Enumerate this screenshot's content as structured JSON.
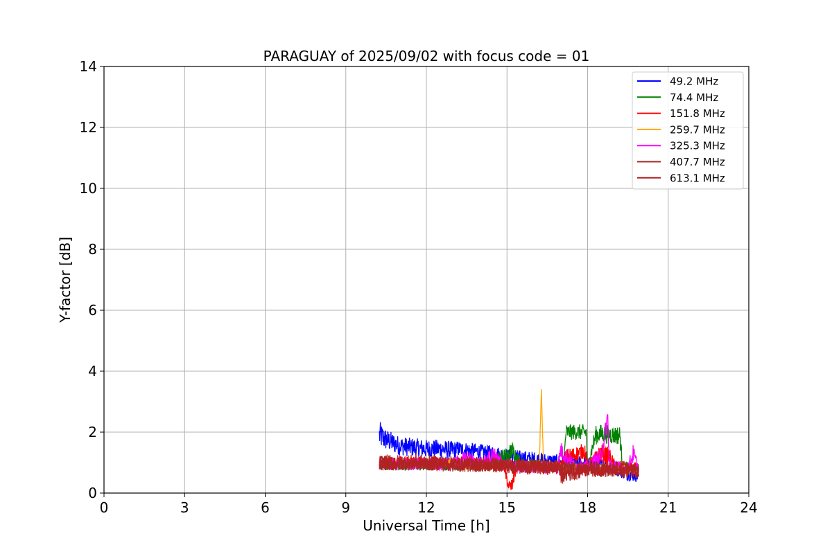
{
  "chart_data": {
    "type": "line",
    "title": "PARAGUAY of 2025/09/02 with focus code = 01",
    "xlabel": "Universal Time [h]",
    "ylabel": "Y-factor [dB]",
    "xlim": [
      0,
      24
    ],
    "ylim": [
      0,
      14
    ],
    "xticks": [
      0,
      3,
      6,
      9,
      12,
      15,
      18,
      21,
      24
    ],
    "yticks": [
      0,
      2,
      4,
      6,
      8,
      10,
      12,
      14
    ],
    "xtick_labels": [
      "0",
      "3",
      "6",
      "9",
      "12",
      "15",
      "18",
      "21",
      "24"
    ],
    "ytick_labels": [
      "0",
      "2",
      "4",
      "6",
      "8",
      "10",
      "12",
      "14"
    ],
    "grid": true,
    "legend_position": "top-right",
    "series": [
      {
        "name": " 49.2 MHz",
        "color": "#0000ff",
        "x": [
          10.25,
          10.5,
          11.0,
          11.5,
          12.0,
          12.5,
          12.95,
          13.2,
          13.6,
          14.0,
          14.5,
          15.0,
          15.5,
          16.0,
          16.5,
          17.0,
          17.5,
          18.0,
          18.5,
          19.0,
          19.5,
          19.9
        ],
        "y": [
          1.9,
          1.75,
          1.55,
          1.5,
          1.45,
          1.45,
          1.4,
          1.45,
          1.4,
          1.35,
          1.3,
          1.2,
          1.15,
          1.1,
          1.05,
          1.0,
          1.0,
          0.95,
          0.9,
          0.85,
          0.7,
          0.6
        ],
        "noise": [
          0.45,
          0.35,
          0.3,
          0.3,
          0.3,
          0.3,
          0.3,
          0.25,
          0.25,
          0.25,
          0.25,
          0.25,
          0.25,
          0.25,
          0.25,
          0.25,
          0.25,
          0.25,
          0.25,
          0.25,
          0.3,
          0.25
        ]
      },
      {
        "name": " 74.4 MHz",
        "color": "#008000",
        "x": [
          10.25,
          11.0,
          12.0,
          13.0,
          14.0,
          15.0,
          15.2,
          15.5,
          16.5,
          17.1,
          17.2,
          17.5,
          17.95,
          18.0,
          18.3,
          18.5,
          19.0,
          19.2,
          19.3,
          19.9
        ],
        "y": [
          0.9,
          0.9,
          0.9,
          0.9,
          0.9,
          1.2,
          1.4,
          1.0,
          0.9,
          0.9,
          2.0,
          2.0,
          2.0,
          0.9,
          1.9,
          1.95,
          1.9,
          1.9,
          0.9,
          0.8
        ],
        "noise": [
          0.15,
          0.15,
          0.15,
          0.15,
          0.15,
          0.3,
          0.3,
          0.15,
          0.15,
          0.15,
          0.25,
          0.25,
          0.25,
          0.15,
          0.3,
          0.3,
          0.3,
          0.3,
          0.15,
          0.15
        ]
      },
      {
        "name": " 151.8 MHz",
        "color": "#ff0000",
        "x": [
          10.25,
          11.0,
          12.0,
          13.0,
          14.0,
          14.9,
          15.05,
          15.2,
          15.35,
          16.0,
          17.0,
          17.2,
          17.5,
          17.9,
          18.0,
          18.5,
          18.8,
          19.0,
          19.5,
          19.9
        ],
        "y": [
          1.0,
          1.0,
          1.0,
          1.0,
          0.95,
          0.9,
          0.2,
          0.3,
          0.9,
          0.85,
          0.85,
          1.2,
          1.25,
          1.4,
          0.85,
          1.3,
          1.2,
          0.9,
          0.8,
          0.8
        ],
        "noise": [
          0.2,
          0.2,
          0.2,
          0.2,
          0.2,
          0.2,
          0.15,
          0.2,
          0.2,
          0.2,
          0.2,
          0.25,
          0.25,
          0.25,
          0.2,
          0.3,
          0.3,
          0.2,
          0.2,
          0.2
        ]
      },
      {
        "name": " 259.7 MHz",
        "color": "#ffa500",
        "x": [
          10.25,
          11.0,
          12.0,
          13.0,
          14.0,
          15.0,
          16.0,
          16.2,
          16.28,
          16.36,
          17.0,
          18.0,
          19.0,
          19.9
        ],
        "y": [
          0.95,
          0.95,
          0.95,
          0.95,
          0.9,
          0.9,
          0.85,
          0.85,
          3.4,
          0.85,
          0.85,
          0.8,
          0.8,
          0.75
        ],
        "noise": [
          0.15,
          0.15,
          0.15,
          0.15,
          0.15,
          0.15,
          0.15,
          0.15,
          0.0,
          0.15,
          0.15,
          0.15,
          0.15,
          0.15
        ]
      },
      {
        "name": " 325.3 MHz",
        "color": "#ff00ff",
        "x": [
          10.25,
          10.6,
          11.0,
          12.0,
          13.0,
          13.5,
          14.0,
          14.5,
          15.0,
          16.0,
          16.9,
          17.0,
          17.5,
          18.0,
          18.5,
          18.75,
          18.8,
          19.0,
          19.5,
          19.7,
          19.9
        ],
        "y": [
          0.95,
          0.95,
          0.95,
          0.95,
          0.95,
          1.1,
          0.95,
          1.2,
          0.9,
          0.85,
          0.85,
          1.4,
          0.9,
          0.85,
          1.2,
          2.5,
          1.0,
          0.85,
          0.8,
          1.3,
          0.75
        ],
        "noise": [
          0.2,
          0.2,
          0.2,
          0.2,
          0.2,
          0.3,
          0.2,
          0.3,
          0.2,
          0.2,
          0.2,
          0.3,
          0.2,
          0.2,
          0.3,
          0.3,
          0.2,
          0.2,
          0.2,
          0.3,
          0.2
        ]
      },
      {
        "name": " 407.7 MHz",
        "color": "#a52a2a",
        "x": [
          10.25,
          11.0,
          12.0,
          13.0,
          14.0,
          15.0,
          16.0,
          17.0,
          18.0,
          19.0,
          19.9
        ],
        "y": [
          0.95,
          0.95,
          0.95,
          0.95,
          0.9,
          0.9,
          0.85,
          0.85,
          0.8,
          0.75,
          0.75
        ],
        "noise": [
          0.2,
          0.2,
          0.2,
          0.2,
          0.2,
          0.2,
          0.2,
          0.2,
          0.2,
          0.2,
          0.2
        ]
      },
      {
        "name": " 613.1 MHz",
        "color": "#b22222",
        "x": [
          10.25,
          11.0,
          12.0,
          13.0,
          14.0,
          15.0,
          16.0,
          16.9,
          17.0,
          18.0,
          19.0,
          19.9
        ],
        "y": [
          1.0,
          1.0,
          1.0,
          0.95,
          0.95,
          0.9,
          0.85,
          0.85,
          0.6,
          0.8,
          0.75,
          0.75
        ],
        "noise": [
          0.25,
          0.25,
          0.25,
          0.25,
          0.25,
          0.25,
          0.25,
          0.25,
          0.3,
          0.25,
          0.25,
          0.25
        ]
      }
    ]
  }
}
